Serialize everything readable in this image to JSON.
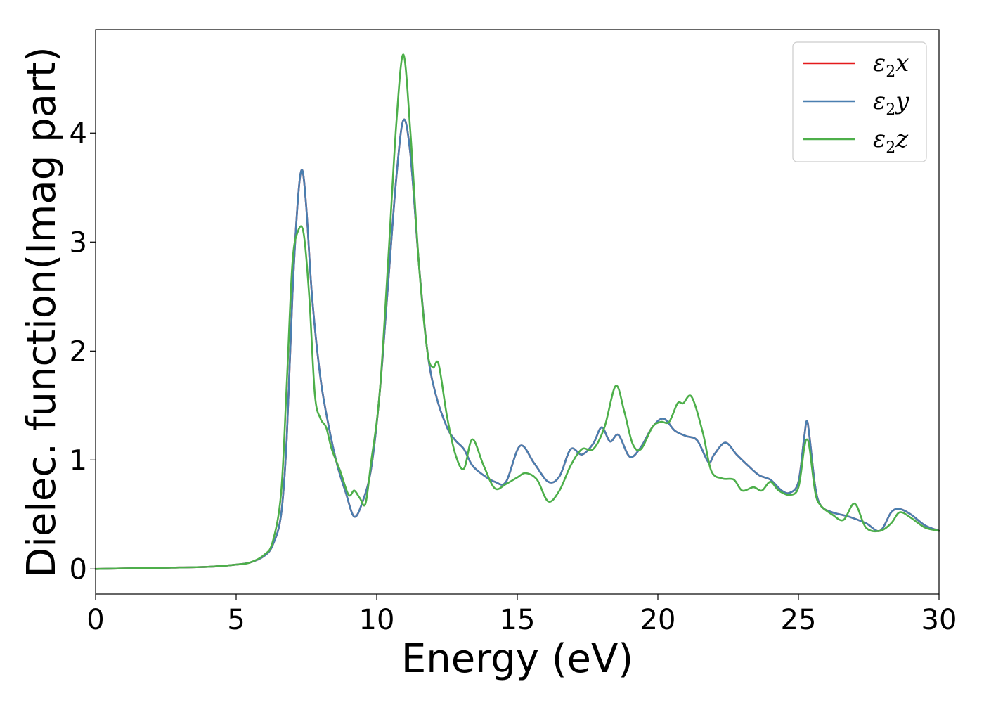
{
  "chart_data": {
    "type": "line",
    "title": "",
    "xlabel": "Energy (eV)",
    "ylabel": "Dielec. function(Imag part)",
    "xlim": [
      0,
      30
    ],
    "ylim": [
      -0.23,
      4.95
    ],
    "xticks": [
      0,
      5,
      10,
      15,
      20,
      25,
      30
    ],
    "yticks": [
      0,
      1,
      2,
      3,
      4
    ],
    "grid": false,
    "legend_position": "top-right",
    "series": [
      {
        "name": "ε2x",
        "legend_label": {
          "base": "ε",
          "sub": "2",
          "suffix": "x"
        },
        "color": "#e41a1c",
        "x": [
          0,
          2,
          4,
          5,
          5.5,
          6,
          6.3,
          6.6,
          6.8,
          7.0,
          7.2,
          7.35,
          7.5,
          7.7,
          8.0,
          8.3,
          8.6,
          8.9,
          9.2,
          9.5,
          9.8,
          10.1,
          10.4,
          10.7,
          10.95,
          11.2,
          11.5,
          11.8,
          12.1,
          12.5,
          12.8,
          13.1,
          13.4,
          13.8,
          14.2,
          14.6,
          15.1,
          15.6,
          16.1,
          16.5,
          16.9,
          17.3,
          17.7,
          18.0,
          18.3,
          18.6,
          19.0,
          19.4,
          19.8,
          20.2,
          20.6,
          21.0,
          21.4,
          21.8,
          22.0,
          22.4,
          22.8,
          23.2,
          23.6,
          24.0,
          24.4,
          24.7,
          25.0,
          25.2,
          25.3,
          25.4,
          25.6,
          25.8,
          26.2,
          26.8,
          27.4,
          27.9,
          28.3,
          28.6,
          29.0,
          29.5,
          30.0
        ],
        "values": [
          0,
          0.01,
          0.02,
          0.04,
          0.06,
          0.12,
          0.22,
          0.5,
          1.2,
          2.5,
          3.4,
          3.66,
          3.3,
          2.5,
          1.75,
          1.3,
          0.95,
          0.7,
          0.48,
          0.62,
          0.92,
          1.6,
          2.6,
          3.6,
          4.12,
          3.8,
          2.8,
          2.0,
          1.6,
          1.3,
          1.18,
          1.1,
          0.95,
          0.86,
          0.8,
          0.8,
          1.13,
          0.97,
          0.8,
          0.85,
          1.1,
          1.05,
          1.15,
          1.3,
          1.17,
          1.23,
          1.03,
          1.12,
          1.3,
          1.38,
          1.27,
          1.22,
          1.18,
          0.98,
          1.05,
          1.16,
          1.05,
          0.95,
          0.86,
          0.82,
          0.72,
          0.7,
          0.8,
          1.2,
          1.36,
          1.2,
          0.75,
          0.58,
          0.52,
          0.48,
          0.42,
          0.35,
          0.52,
          0.55,
          0.5,
          0.4,
          0.35
        ]
      },
      {
        "name": "ε2y",
        "legend_label": {
          "base": "ε",
          "sub": "2",
          "suffix": "y"
        },
        "color": "#4a7fb0",
        "x": [
          0,
          2,
          4,
          5,
          5.5,
          6,
          6.3,
          6.6,
          6.8,
          7.0,
          7.2,
          7.35,
          7.5,
          7.7,
          8.0,
          8.3,
          8.6,
          8.9,
          9.2,
          9.5,
          9.8,
          10.1,
          10.4,
          10.7,
          10.95,
          11.2,
          11.5,
          11.8,
          12.1,
          12.5,
          12.8,
          13.1,
          13.4,
          13.8,
          14.2,
          14.6,
          15.1,
          15.6,
          16.1,
          16.5,
          16.9,
          17.3,
          17.7,
          18.0,
          18.3,
          18.6,
          19.0,
          19.4,
          19.8,
          20.2,
          20.6,
          21.0,
          21.4,
          21.8,
          22.0,
          22.4,
          22.8,
          23.2,
          23.6,
          24.0,
          24.4,
          24.7,
          25.0,
          25.2,
          25.3,
          25.4,
          25.6,
          25.8,
          26.2,
          26.8,
          27.4,
          27.9,
          28.3,
          28.6,
          29.0,
          29.5,
          30.0
        ],
        "values": [
          0,
          0.01,
          0.02,
          0.04,
          0.06,
          0.12,
          0.22,
          0.5,
          1.2,
          2.5,
          3.4,
          3.66,
          3.3,
          2.5,
          1.75,
          1.3,
          0.95,
          0.7,
          0.48,
          0.62,
          0.92,
          1.6,
          2.6,
          3.6,
          4.12,
          3.8,
          2.8,
          2.0,
          1.6,
          1.3,
          1.18,
          1.1,
          0.95,
          0.86,
          0.8,
          0.8,
          1.13,
          0.97,
          0.8,
          0.85,
          1.1,
          1.05,
          1.15,
          1.3,
          1.17,
          1.23,
          1.03,
          1.12,
          1.3,
          1.38,
          1.27,
          1.22,
          1.18,
          0.98,
          1.05,
          1.16,
          1.05,
          0.95,
          0.86,
          0.82,
          0.72,
          0.7,
          0.8,
          1.2,
          1.36,
          1.2,
          0.75,
          0.58,
          0.52,
          0.48,
          0.42,
          0.35,
          0.52,
          0.55,
          0.5,
          0.4,
          0.35
        ]
      },
      {
        "name": "ε2z",
        "legend_label": {
          "base": "ε",
          "sub": "2",
          "suffix": "z"
        },
        "color": "#4daf4a",
        "x": [
          0,
          2,
          4,
          5,
          5.5,
          6,
          6.3,
          6.6,
          6.8,
          7.0,
          7.2,
          7.4,
          7.6,
          7.8,
          8.0,
          8.2,
          8.4,
          8.7,
          9.0,
          9.2,
          9.4,
          9.6,
          9.8,
          10.1,
          10.4,
          10.7,
          10.95,
          11.2,
          11.5,
          11.8,
          12.0,
          12.2,
          12.5,
          12.8,
          13.1,
          13.4,
          13.8,
          14.2,
          14.6,
          15.0,
          15.3,
          15.7,
          16.1,
          16.5,
          16.9,
          17.3,
          17.7,
          18.1,
          18.5,
          18.8,
          19.1,
          19.4,
          19.8,
          20.1,
          20.4,
          20.7,
          20.9,
          21.2,
          21.6,
          21.9,
          22.3,
          22.7,
          23.0,
          23.4,
          23.7,
          24.0,
          24.3,
          24.7,
          25.0,
          25.2,
          25.3,
          25.4,
          25.6,
          25.8,
          26.2,
          26.6,
          27.0,
          27.4,
          27.9,
          28.3,
          28.6,
          29.0,
          29.5,
          30.0
        ],
        "values": [
          0,
          0.01,
          0.02,
          0.04,
          0.06,
          0.13,
          0.25,
          0.7,
          1.7,
          2.8,
          3.1,
          3.08,
          2.5,
          1.6,
          1.38,
          1.3,
          1.1,
          0.9,
          0.68,
          0.72,
          0.65,
          0.6,
          0.98,
          1.6,
          2.8,
          4.1,
          4.72,
          4.0,
          2.8,
          2.0,
          1.85,
          1.88,
          1.4,
          1.05,
          0.92,
          1.19,
          0.95,
          0.74,
          0.78,
          0.84,
          0.88,
          0.82,
          0.62,
          0.72,
          0.95,
          1.1,
          1.1,
          1.3,
          1.68,
          1.45,
          1.15,
          1.1,
          1.3,
          1.35,
          1.35,
          1.52,
          1.52,
          1.58,
          1.25,
          0.9,
          0.83,
          0.82,
          0.72,
          0.75,
          0.72,
          0.8,
          0.72,
          0.68,
          0.75,
          1.1,
          1.19,
          1.1,
          0.7,
          0.58,
          0.5,
          0.45,
          0.6,
          0.38,
          0.35,
          0.42,
          0.52,
          0.47,
          0.38,
          0.35
        ]
      }
    ]
  }
}
